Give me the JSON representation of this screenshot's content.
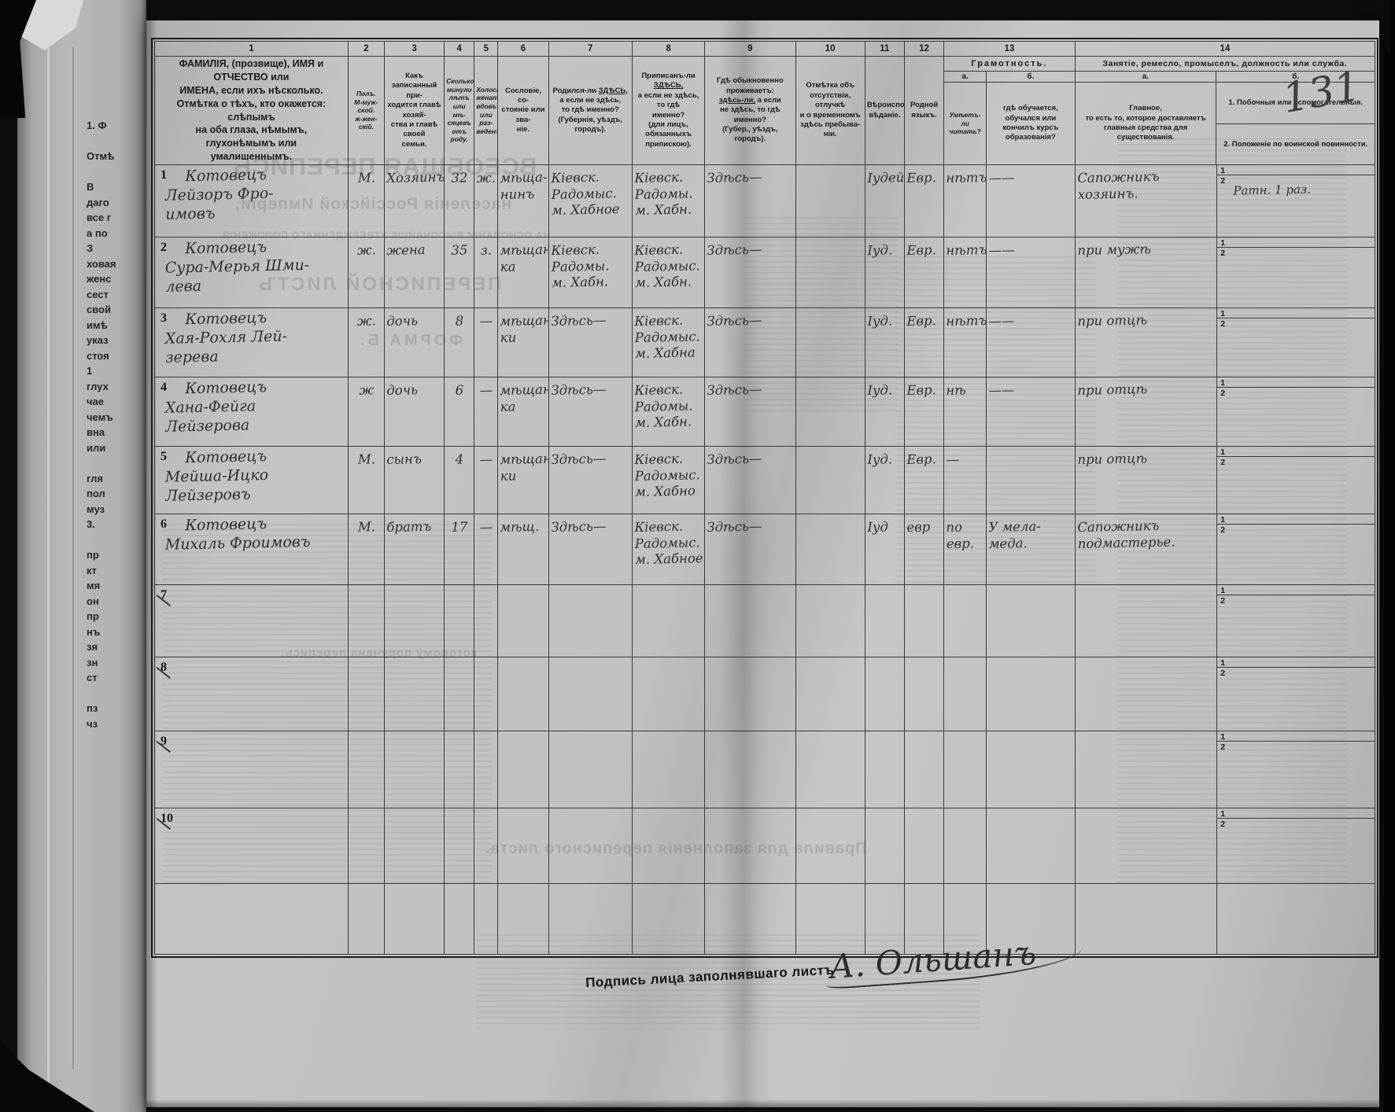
{
  "page_number": "131",
  "left_strip": {
    "text": "1. Ф\n\nОтмѣ\n\nВ\nдаго\nвсе г\nа по\nЗ\nховая\nженс\nсест\nсвой\nимѣ\nуказ\nстоя\n1\nглух\nчае\nчемъ\nвна\nили\n\nгля\nпол\nмуз\n3.\n\nпр\nкт\nмя\nон\nпр\nнъ\nзя\nзн\nст\n\nпз\nчз"
  },
  "columns": {
    "c1": {
      "num": "1",
      "header": "ФАМИЛІЯ, (прозвище), ИМЯ и ОТЧЕСТВО или\nИМЕНА, если ихъ нѣсколько.\nОтмѣтка о тѣхъ, кто окажется: слѣпымъ\nна оба глаза, нѣмымъ, глухонѣмымъ или\nумалишеннымъ."
    },
    "c2": {
      "num": "2",
      "header": "Полъ.\nМ-муж-\nской.\nж-жен-\nскій."
    },
    "c3": {
      "num": "3",
      "header": "Какъ записанный при-\nходится главѣ хозяй-\nства и главѣ своей\nсемьи."
    },
    "c4": {
      "num": "4",
      "header": "Сколько\nминуло\nлѣтъ\nили мѣ-\nсяцевъ\nотъ роду."
    },
    "c5": {
      "num": "5",
      "header": "Холостъ,\nженатъ,\nвдовъ\nили раз-\nведенъ."
    },
    "c6": {
      "num": "6",
      "header": "Сословіе, со-\nстояніе или зва-\nніе."
    },
    "c7": {
      "num": "7",
      "pre": "Родился-ли ",
      "u": "ЗДѢСЬ,",
      "post": "а если не здѣсь,\nто гдѣ именно?\n(Губернія, уѣздъ, городъ)."
    },
    "c8": {
      "num": "8",
      "pre": "Приписанъ-ли ",
      "u": "ЗДѢСЬ,",
      "post": "а если не здѣсь, то гдѣ\nименно?\n(для лицъ, обязанныхъ\nприпискою)."
    },
    "c9": {
      "num": "9",
      "pre": "Гдѣ обыкновенно\nпроживаетъ:\n",
      "u": "здѣсь-ли,",
      "post": " а если\nне здѣсь, то гдѣ\nименно?\n(Губер., уѣздъ, городъ)."
    },
    "c10": {
      "num": "10",
      "header": "Отмѣтка объ\nотсутствіи, отлучкѣ\nи о временномъ\nздѣсь пребыва-\nніи."
    },
    "c11": {
      "num": "11",
      "header": "Вѣроиспо-\nвѣданіе."
    },
    "c12": {
      "num": "12",
      "header": "Родной\nязыкъ."
    },
    "c13": {
      "num": "13",
      "title": "Грамотность.",
      "a_letter": "а.",
      "b_letter": "б.",
      "a": "Умѣетъ-\nли\nчитать?",
      "b": "гдѣ обучается,\nобучался или\nкончилъ курсъ\nобразованія?"
    },
    "c14": {
      "num": "14",
      "title": "Занятіе, ремесло, промыселъ, должность или служба.",
      "a_letter": "а.",
      "b_letter": "б.",
      "a": "Главное,\nто есть то, которое доставляетъ\nглавныя средства для существованія.",
      "b1": "1. Побочныя или вспомогательныя.",
      "b2": "2. Положеніе по воинской повинности."
    }
  },
  "table": {
    "side_sub1": "1",
    "side_sub2": "2"
  },
  "rows": [
    {
      "num": "1",
      "name": "Котовецъ\nЛейзоръ Фро-\nимовъ",
      "sex": "М.",
      "relation": "Хозяинъ",
      "age": "32",
      "marital": "ж.",
      "estate": "мѣща-\nнинъ",
      "born": "Кіевск.\nРадомыс.\nм. Хабное",
      "registered": "Кіевск.\nРадомы.\nм. Хабн.",
      "lives": "Здѣсь—",
      "absence": "",
      "religion": "Іудейск.",
      "language": "Евр.",
      "reads": "нѣтъ",
      "education": "——",
      "occupation": "Сапожникъ\nхозяинъ.",
      "side1": "",
      "side2": "Ратн. 1 раз."
    },
    {
      "num": "2",
      "name": "Котовецъ\nСура-Мерья Шми-\nлева",
      "sex": "ж.",
      "relation": "жена",
      "age": "35",
      "marital": "з.",
      "estate": "мѣщан-\nка",
      "born": "Кіевск.\nРадомы.\nм. Хабн.",
      "registered": "Кіевск.\nРадомыс.\nм. Хабн.",
      "lives": "Здѣсь—",
      "absence": "",
      "religion": "Іуд.",
      "language": "Евр.",
      "reads": "нѣтъ",
      "education": "——",
      "occupation": "при мужѣ",
      "side1": "",
      "side2": ""
    },
    {
      "num": "3",
      "name": "Котовецъ\nХая-Рохля Лей-\nзерева",
      "sex": "ж.",
      "relation": "дочь",
      "age": "8",
      "marital": "—",
      "estate": "мѣщан-\nки",
      "born": "Здѣсь—",
      "registered": "Кіевск.\nРадомыс.\nм. Хабна",
      "lives": "Здѣсь—",
      "absence": "",
      "religion": "Іуд.",
      "language": "Евр.",
      "reads": "нѣтъ",
      "education": "——",
      "occupation": "при отцѣ",
      "side1": "",
      "side2": ""
    },
    {
      "num": "4",
      "name": "Котовецъ\nХана-Фейга\nЛейзерова",
      "sex": "ж",
      "relation": "дочь",
      "age": "6",
      "marital": "—",
      "estate": "мѣщан-\nка",
      "born": "Здѣсь—",
      "registered": "Кіевск.\nРадомы.\nм. Хабн.",
      "lives": "Здѣсь—",
      "absence": "",
      "religion": "Іуд.",
      "language": "Евр.",
      "reads": "нѣ",
      "education": "——",
      "occupation": "при отцѣ",
      "side1": "",
      "side2": ""
    },
    {
      "num": "5",
      "name": "Котовецъ\nМейша-Ицко\nЛейзеровъ",
      "sex": "М.",
      "relation": "сынъ",
      "age": "4",
      "marital": "—",
      "estate": "мѣщан-\nки",
      "born": "Здѣсь—",
      "registered": "Кіевск.\nРадомыс.\nм. Хабно",
      "lives": "Здѣсь—",
      "absence": "",
      "religion": "Іуд.",
      "language": "Евр.",
      "reads": "—",
      "education": "",
      "occupation": "при отцѣ",
      "side1": "",
      "side2": ""
    },
    {
      "num": "6",
      "name": "Котовецъ\nМихаль Фроимовъ",
      "sex": "М.",
      "relation": "братъ",
      "age": "17",
      "marital": "—",
      "estate": "мѣщ.",
      "born": "Здѣсь—",
      "registered": "Кіевск.\nРадомыс.\nм. Хабное",
      "lives": "Здѣсь—",
      "absence": "",
      "religion": "Іуд",
      "language": "евр",
      "reads": "по\nевр.",
      "education": "У мела-\nмеда.",
      "occupation": "Сапожникъ\nподмастерье.",
      "side1": "",
      "side2": ""
    },
    {
      "num": "7",
      "crossed": true,
      "name": "",
      "sex": "",
      "relation": "",
      "age": "",
      "marital": "",
      "estate": "",
      "born": "",
      "registered": "",
      "lives": "",
      "absence": "",
      "religion": "",
      "language": "",
      "reads": "",
      "education": "",
      "occupation": "",
      "side1": "",
      "side2": ""
    },
    {
      "num": "8",
      "crossed": true,
      "name": "",
      "sex": "",
      "relation": "",
      "age": "",
      "marital": "",
      "estate": "",
      "born": "",
      "registered": "",
      "lives": "",
      "absence": "",
      "religion": "",
      "language": "",
      "reads": "",
      "education": "",
      "occupation": "",
      "side1": "",
      "side2": ""
    },
    {
      "num": "9",
      "crossed": true,
      "name": "",
      "sex": "",
      "relation": "",
      "age": "",
      "marital": "",
      "estate": "",
      "born": "",
      "registered": "",
      "lives": "",
      "absence": "",
      "religion": "",
      "language": "",
      "reads": "",
      "education": "",
      "occupation": "",
      "side1": "",
      "side2": ""
    },
    {
      "num": "10",
      "crossed": true,
      "name": "",
      "sex": "",
      "relation": "",
      "age": "",
      "marital": "",
      "estate": "",
      "born": "",
      "registered": "",
      "lives": "",
      "absence": "",
      "religion": "",
      "language": "",
      "reads": "",
      "education": "",
      "occupation": "",
      "side1": "",
      "side2": ""
    }
  ],
  "ghosts": [
    "ВСЕОБЩАЯ ПЕРЕПИСЬ",
    "населенія Россійской Имперіи,",
    "НА ОСНОВАНІИ ВЫСОЧАЙШЕ УТВЕРЖДЕННАГО ПОЛОЖЕНІЯ",
    "ПЕРЕПИСНОЙ ЛИСТЪ",
    "ФОРМА Б.",
    "которому поручена перепись.",
    "Правила для заполненія переписного листа."
  ],
  "footer": {
    "signature_label": "Подпись лица заполнявшаго листъ",
    "signature": "А. Ольшанъ"
  }
}
